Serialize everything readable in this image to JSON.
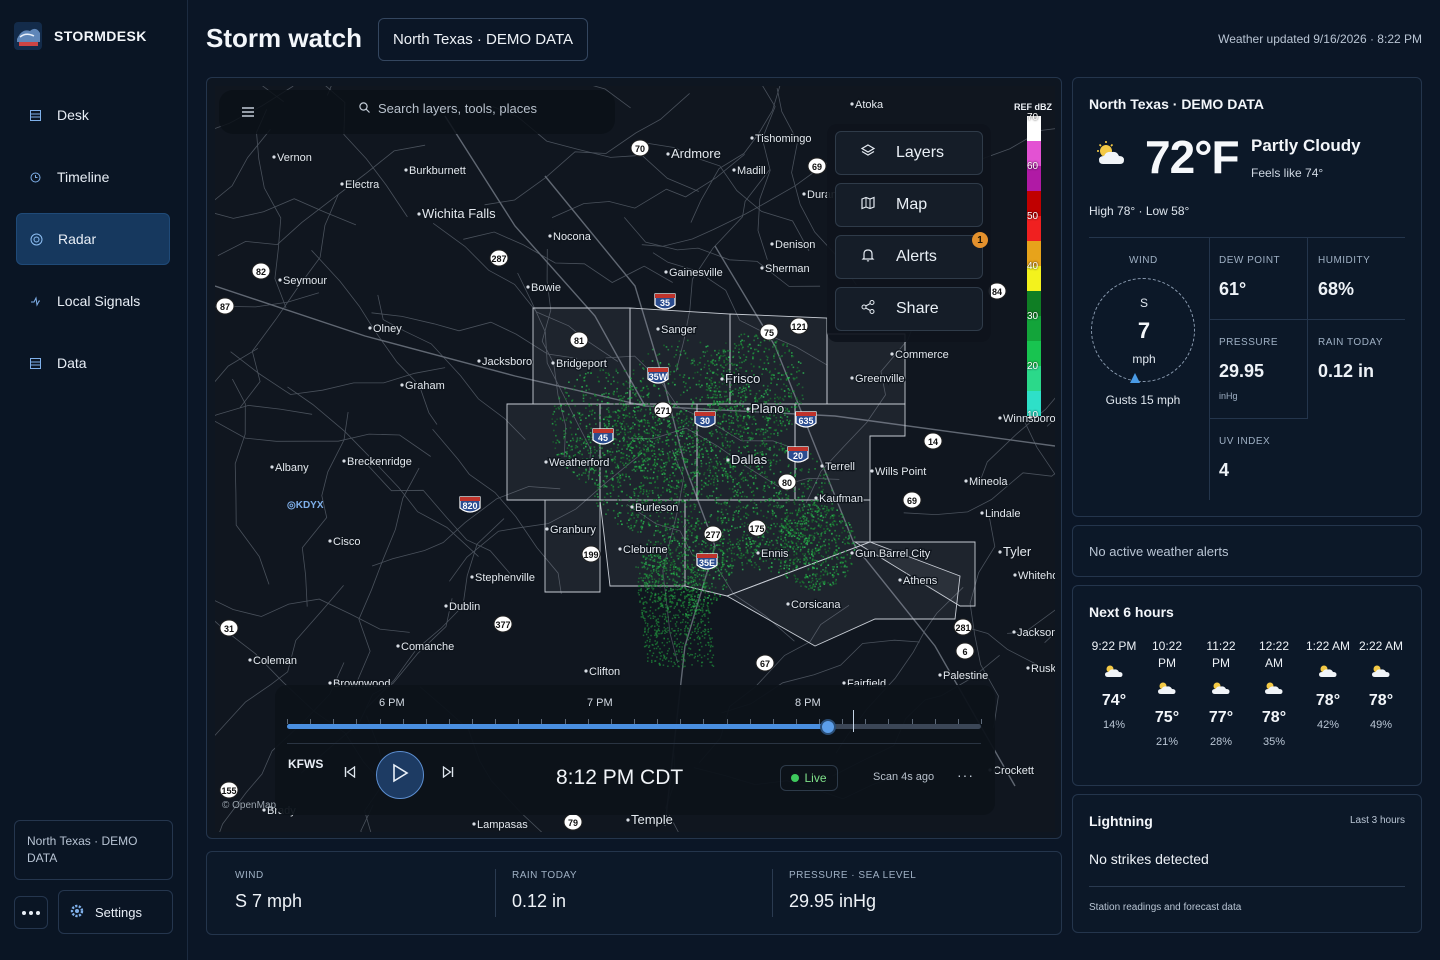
{
  "app": {
    "name": "STORMDESK",
    "page_title": "Storm watch",
    "region_chip": "North Texas · DEMO DATA",
    "updated": "Weather updated 9/16/2026 · 8:22 PM"
  },
  "sidebar": {
    "items": [
      {
        "label": "Desk",
        "icon": "grid-icon"
      },
      {
        "label": "Timeline",
        "icon": "clock-icon"
      },
      {
        "label": "Radar",
        "icon": "radar-icon",
        "active": true
      },
      {
        "label": "Local Signals",
        "icon": "signal-icon"
      },
      {
        "label": "Data",
        "icon": "table-icon"
      }
    ],
    "footer_tag": "North Texas · DEMO DATA",
    "settings_label": "Settings"
  },
  "map": {
    "search_placeholder": "Search layers, tools, places",
    "tools": [
      {
        "label": "Layers",
        "icon": "layers-icon"
      },
      {
        "label": "Map",
        "icon": "map-icon"
      },
      {
        "label": "Alerts",
        "icon": "bell-icon",
        "badge": "1"
      },
      {
        "label": "Share",
        "icon": "share-icon"
      }
    ],
    "legend": {
      "title": "REF dBZ",
      "ticks": [
        "70",
        "60",
        "50",
        "40",
        "30",
        "20",
        "10"
      ]
    },
    "station_marker": "KDYX",
    "attribution": "© OpenMap",
    "place_labels": [
      "Atoka",
      "Tishomingo",
      "Ardmore",
      "Madill",
      "Durant",
      "Denison",
      "Sherman",
      "Gainesville",
      "Bowie",
      "Nocona",
      "Wichita Falls",
      "Burkburnett",
      "Electra",
      "Vernon",
      "Seymour",
      "Olney",
      "Graham",
      "Jacksboro",
      "Bridgeport",
      "Sanger",
      "Frisco",
      "Plano",
      "Commerce",
      "Greenville",
      "Dallas",
      "Terrell",
      "Wills Point",
      "Mineola",
      "Lindale",
      "Tyler",
      "Whitehouse",
      "Weatherford",
      "Burleson",
      "Granbury",
      "Cleburne",
      "Ennis",
      "Kaufman",
      "Gun Barrel City",
      "Athens",
      "Corsicana",
      "Stephenville",
      "Dublin",
      "Comanche",
      "Coleman",
      "Brownwood",
      "Clifton",
      "Fairfield",
      "Palestine",
      "Jacksonville",
      "Rusk",
      "Breckenridge",
      "Albany",
      "Cisco",
      "Winnsboro",
      "Lampasas",
      "Temple",
      "Brady",
      "Crockett"
    ],
    "shields": [
      "70",
      "69",
      "82",
      "287",
      "81",
      "75",
      "121",
      "35",
      "35W",
      "35E",
      "635",
      "30",
      "20",
      "80",
      "175",
      "45",
      "820",
      "199",
      "377",
      "67",
      "281",
      "6",
      "31",
      "155",
      "79",
      "84",
      "87",
      "14",
      "271",
      "277",
      "69"
    ]
  },
  "timeline": {
    "hour_labels": [
      "6 PM",
      "7 PM",
      "8 PM"
    ],
    "progress": 0.78,
    "now_marker": 0.815,
    "station": "KFWS",
    "frame_time": "8:12 PM CDT",
    "live_label": "Live",
    "scan_label": "Scan 4s ago",
    "more": "···"
  },
  "stats": [
    {
      "label": "WIND",
      "value": "S 7 mph"
    },
    {
      "label": "RAIN TODAY",
      "value": "0.12 in"
    },
    {
      "label": "PRESSURE · SEA LEVEL",
      "value": "29.95 inHg"
    }
  ],
  "conditions": {
    "title": "North Texas · DEMO DATA",
    "icon": "partly-cloudy-icon",
    "temp": "72°F",
    "summary": "Partly Cloudy",
    "feels": "Feels like 74°",
    "hilo": "High 78° · Low 58°",
    "wind": {
      "label": "WIND",
      "dir": "S",
      "speed": "7",
      "unit": "mph",
      "gusts": "Gusts 15 mph"
    },
    "dew_point": {
      "label": "DEW POINT",
      "value": "61°"
    },
    "humidity": {
      "label": "HUMIDITY",
      "value": "68%"
    },
    "pressure": {
      "label": "PRESSURE",
      "value": "29.95",
      "unit": "inHg"
    },
    "rain_today": {
      "label": "RAIN TODAY",
      "value": "0.12 in"
    },
    "uv": {
      "label": "UV INDEX",
      "value": "4"
    }
  },
  "alerts": {
    "text": "No active weather alerts"
  },
  "hourly": {
    "title": "Next 6 hours",
    "hours": [
      {
        "time": "9:22 PM",
        "temp": "74°",
        "pop": "14%",
        "icon": "partly-cloudy-night-icon"
      },
      {
        "time": "10:22 PM",
        "temp": "75°",
        "pop": "21%",
        "icon": "cloudy-icon"
      },
      {
        "time": "11:22 PM",
        "temp": "77°",
        "pop": "28%",
        "icon": "cloudy-icon"
      },
      {
        "time": "12:22 AM",
        "temp": "78°",
        "pop": "35%",
        "icon": "cloudy-icon"
      },
      {
        "time": "1:22 AM",
        "temp": "78°",
        "pop": "42%",
        "icon": "cloudy-icon"
      },
      {
        "time": "2:22 AM",
        "temp": "78°",
        "pop": "49%",
        "icon": "cloudy-icon"
      }
    ]
  },
  "lightning": {
    "title": "Lightning",
    "window": "Last 3 hours",
    "status": "No strikes detected",
    "footer": "Station readings and forecast data"
  },
  "colors": {
    "accent": "#4a8fe0",
    "panel": "#0c1828",
    "border": "#24354c",
    "live": "#3ec95d",
    "badge": "#e4912d"
  }
}
